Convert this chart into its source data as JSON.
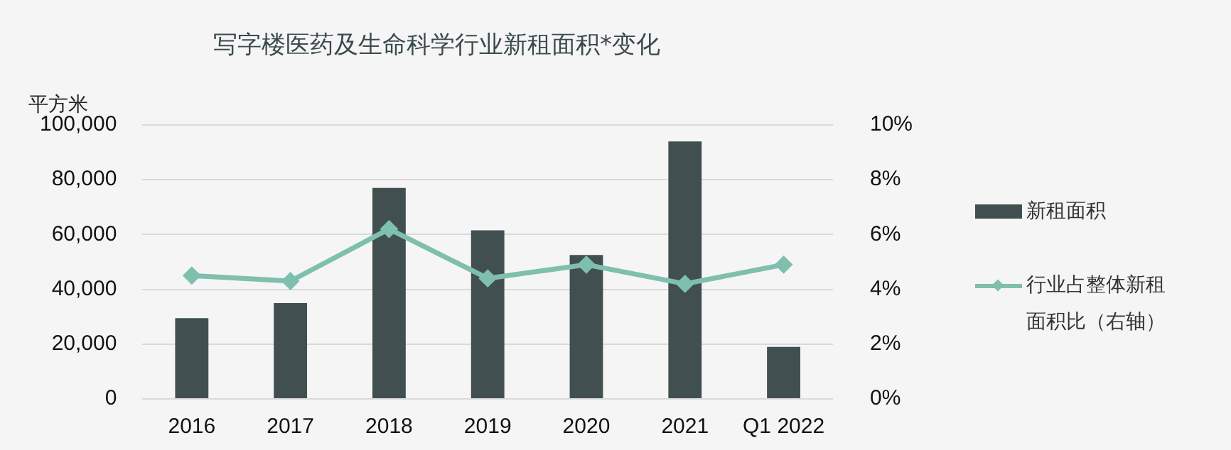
{
  "chart_data": {
    "type": "bar",
    "title": "写字楼医药及生命科学行业新租面积*变化",
    "ylabel": "平方米",
    "categories": [
      "2016",
      "2017",
      "2018",
      "2019",
      "2020",
      "2021",
      "Q1 2022"
    ],
    "series": [
      {
        "name": "新租面积",
        "color": "#414f51",
        "values": [
          29500,
          35000,
          77000,
          61500,
          52500,
          94000,
          19000
        ]
      },
      {
        "name": "行业占整体新租面积比（右轴）",
        "type": "line",
        "axis": "y2",
        "color": "#7fbfad",
        "marker": "diamond",
        "values": [
          4.5,
          4.3,
          6.2,
          4.4,
          4.9,
          4.2,
          4.9
        ]
      }
    ],
    "ylim": [
      0,
      100000
    ],
    "yticks": [
      {
        "value": 0,
        "label": "0"
      },
      {
        "value": 20000,
        "label": "20,000"
      },
      {
        "value": 40000,
        "label": "40,000"
      },
      {
        "value": 60000,
        "label": "60,000"
      },
      {
        "value": 80000,
        "label": "80,000"
      },
      {
        "value": 100000,
        "label": "100,000"
      }
    ],
    "y2lim": [
      0,
      10
    ],
    "y2ticks": [
      {
        "value": 0,
        "label": "0%"
      },
      {
        "value": 2,
        "label": "2%"
      },
      {
        "value": 4,
        "label": "4%"
      },
      {
        "value": 6,
        "label": "6%"
      },
      {
        "value": 8,
        "label": "8%"
      },
      {
        "value": 10,
        "label": "10%"
      }
    ],
    "grid": "y",
    "legend": "right"
  }
}
